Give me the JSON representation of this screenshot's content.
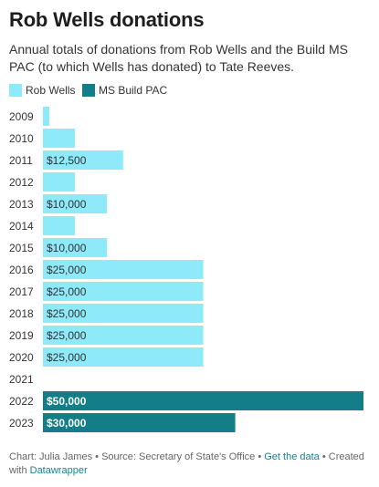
{
  "title": "Rob Wells donations",
  "subtitle": "Annual totals of donations from Rob Wells and the Build MS PAC (to which Wells has donated) to Tate Reeves.",
  "legend": [
    {
      "label": "Rob Wells",
      "color": "#8ee9f9"
    },
    {
      "label": "MS Build PAC",
      "color": "#137e87"
    }
  ],
  "chart_data": {
    "type": "bar",
    "orientation": "horizontal",
    "categories": [
      "2009",
      "2010",
      "2011",
      "2012",
      "2013",
      "2014",
      "2015",
      "2016",
      "2017",
      "2018",
      "2019",
      "2020",
      "2021",
      "2022",
      "2023"
    ],
    "series": [
      {
        "name": "Rob Wells",
        "color": "#8ee9f9",
        "values": [
          1000,
          5000,
          12500,
          5000,
          10000,
          5000,
          10000,
          25000,
          25000,
          25000,
          25000,
          25000,
          0,
          0,
          0
        ],
        "labels": [
          "",
          "",
          "$12,500",
          "",
          "$10,000",
          "",
          "$10,000",
          "$25,000",
          "$25,000",
          "$25,000",
          "$25,000",
          "$25,000",
          "",
          "",
          ""
        ]
      },
      {
        "name": "MS Build PAC",
        "color": "#137e87",
        "values": [
          0,
          0,
          0,
          0,
          0,
          0,
          0,
          0,
          0,
          0,
          0,
          0,
          0,
          50000,
          30000
        ],
        "labels": [
          "",
          "",
          "",
          "",
          "",
          "",
          "",
          "",
          "",
          "",
          "",
          "",
          "",
          "$50,000",
          "$30,000"
        ]
      }
    ],
    "xlim": [
      0,
      50000
    ]
  },
  "footer": {
    "chart_label": "Chart: Julia James",
    "sep1": " • ",
    "source": "Source: Secretary of State's Office",
    "sep2": " • ",
    "get_data": "Get the data",
    "sep3": " • ",
    "created_with": "Created with",
    "datawrapper": "Datawrapper"
  }
}
